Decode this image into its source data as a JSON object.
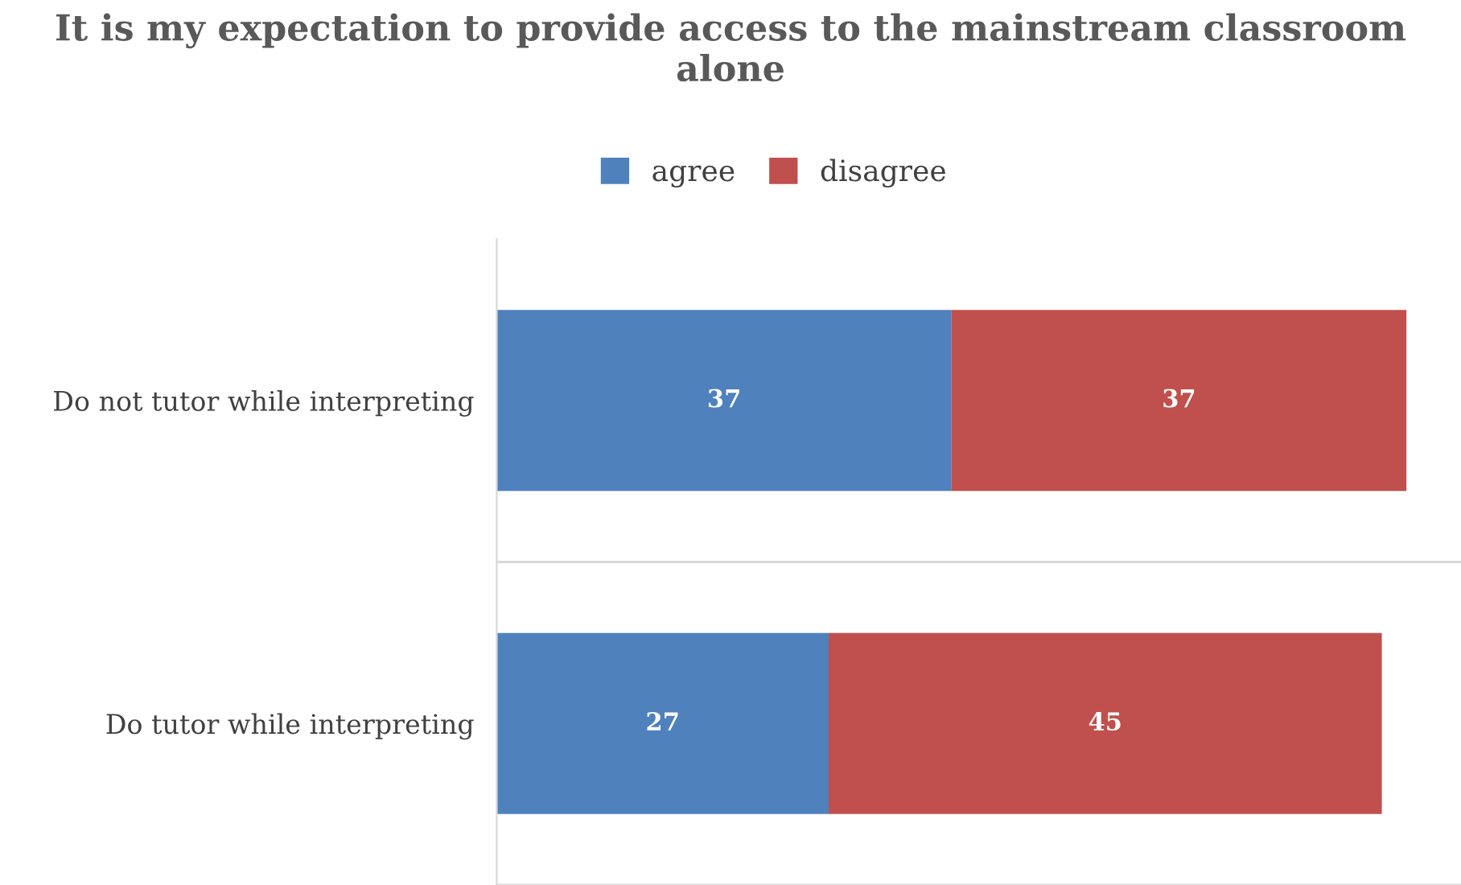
{
  "chart_data": {
    "type": "bar",
    "orientation": "horizontal",
    "stacked": true,
    "title": "It is my expectation to provide access to the mainstream classroom alone",
    "categories": [
      "Do not tutor while interpreting",
      "Do tutor while interpreting"
    ],
    "series": [
      {
        "name": "agree",
        "color": "#4f81bd",
        "values": [
          37,
          27
        ]
      },
      {
        "name": "disagree",
        "color": "#c0504d",
        "values": [
          37,
          45
        ]
      }
    ],
    "data_labels": true,
    "legend": "top",
    "tick_labels": "y"
  }
}
